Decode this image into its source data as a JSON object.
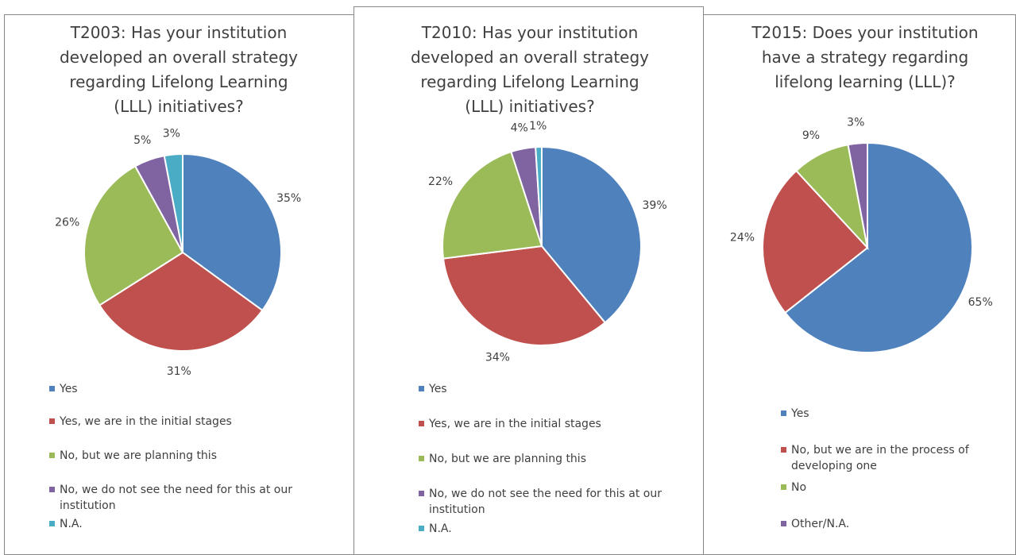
{
  "chart_data": [
    {
      "type": "pie",
      "title": "T2003: Has your institution developed an overall strategy regarding Lifelong Learning (LLL) initiatives?",
      "categories": [
        "Yes",
        "Yes, we are in the initial stages",
        "No, but we are planning this",
        "No, we do not see the need for this at our institution",
        "N.A."
      ],
      "values": [
        35,
        31,
        26,
        5,
        3
      ],
      "value_labels": [
        "35%",
        "31%",
        "26%",
        "5%",
        "3%"
      ],
      "colors": [
        "#4f81bd",
        "#c0504d",
        "#9bbb59",
        "#8064a2",
        "#4bacc6"
      ]
    },
    {
      "type": "pie",
      "title": "T2010: Has your institution developed an overall strategy regarding Lifelong Learning (LLL) initiatives?",
      "categories": [
        "Yes",
        "Yes, we are in the initial stages",
        "No, but we are planning this",
        "No, we do not see the need for this at our institution",
        "N.A."
      ],
      "values": [
        39,
        34,
        22,
        4,
        1
      ],
      "value_labels": [
        "39%",
        "34%",
        "22%",
        "4%",
        "1%"
      ],
      "colors": [
        "#4f81bd",
        "#c0504d",
        "#9bbb59",
        "#8064a2",
        "#4bacc6"
      ]
    },
    {
      "type": "pie",
      "title": "T2015: Does your institution have a strategy regarding lifelong  learning (LLL)?",
      "categories": [
        "Yes",
        "No, but we are in the process of developing one",
        "No",
        "Other/N.A."
      ],
      "values": [
        65,
        24,
        9,
        3
      ],
      "value_labels": [
        "65%",
        "24%",
        "9%",
        "3%"
      ],
      "colors": [
        "#4f81bd",
        "#c0504d",
        "#9bbb59",
        "#8064a2"
      ]
    }
  ]
}
